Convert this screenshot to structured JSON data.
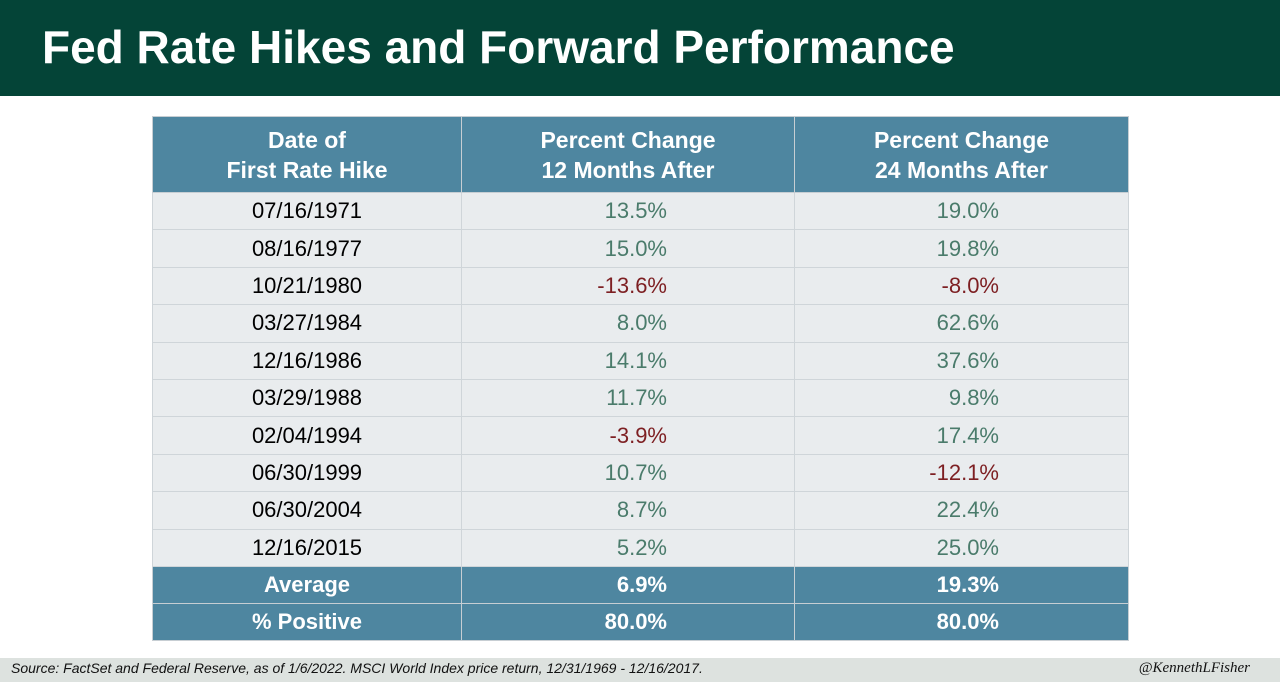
{
  "title": "Fed Rate Hikes and Forward Performance",
  "colors": {
    "header_bg": "#044437",
    "table_header_bg": "#4e86a0",
    "row_bg": "#e9ecee",
    "positive": "#4a7b6b",
    "negative": "#7d1f22"
  },
  "table": {
    "headers": [
      {
        "line1": "Date of",
        "line2": "First Rate Hike"
      },
      {
        "line1": "Percent Change",
        "line2": "12 Months After"
      },
      {
        "line1": "Percent Change",
        "line2": "24 Months After"
      }
    ],
    "rows": [
      {
        "date": "07/16/1971",
        "m12": "13.5%",
        "m24": "19.0%"
      },
      {
        "date": "08/16/1977",
        "m12": "15.0%",
        "m24": "19.8%"
      },
      {
        "date": "10/21/1980",
        "m12": "-13.6%",
        "m24": "-8.0%"
      },
      {
        "date": "03/27/1984",
        "m12": "8.0%",
        "m24": "62.6%"
      },
      {
        "date": "12/16/1986",
        "m12": "14.1%",
        "m24": "37.6%"
      },
      {
        "date": "03/29/1988",
        "m12": "11.7%",
        "m24": "9.8%"
      },
      {
        "date": "02/04/1994",
        "m12": "-3.9%",
        "m24": "17.4%"
      },
      {
        "date": "06/30/1999",
        "m12": "10.7%",
        "m24": "-12.1%"
      },
      {
        "date": "06/30/2004",
        "m12": "8.7%",
        "m24": "22.4%"
      },
      {
        "date": "12/16/2015",
        "m12": "5.2%",
        "m24": "25.0%"
      }
    ],
    "summary": [
      {
        "label": "Average",
        "m12": "6.9%",
        "m24": "19.3%"
      },
      {
        "label": "% Positive",
        "m12": "80.0%",
        "m24": "80.0%"
      }
    ]
  },
  "footer": {
    "source": "Source: FactSet and Federal Reserve, as of 1/6/2022. MSCI World Index price return, 12/31/1969 - 12/16/2017.",
    "handle": "@KennethLFisher"
  }
}
